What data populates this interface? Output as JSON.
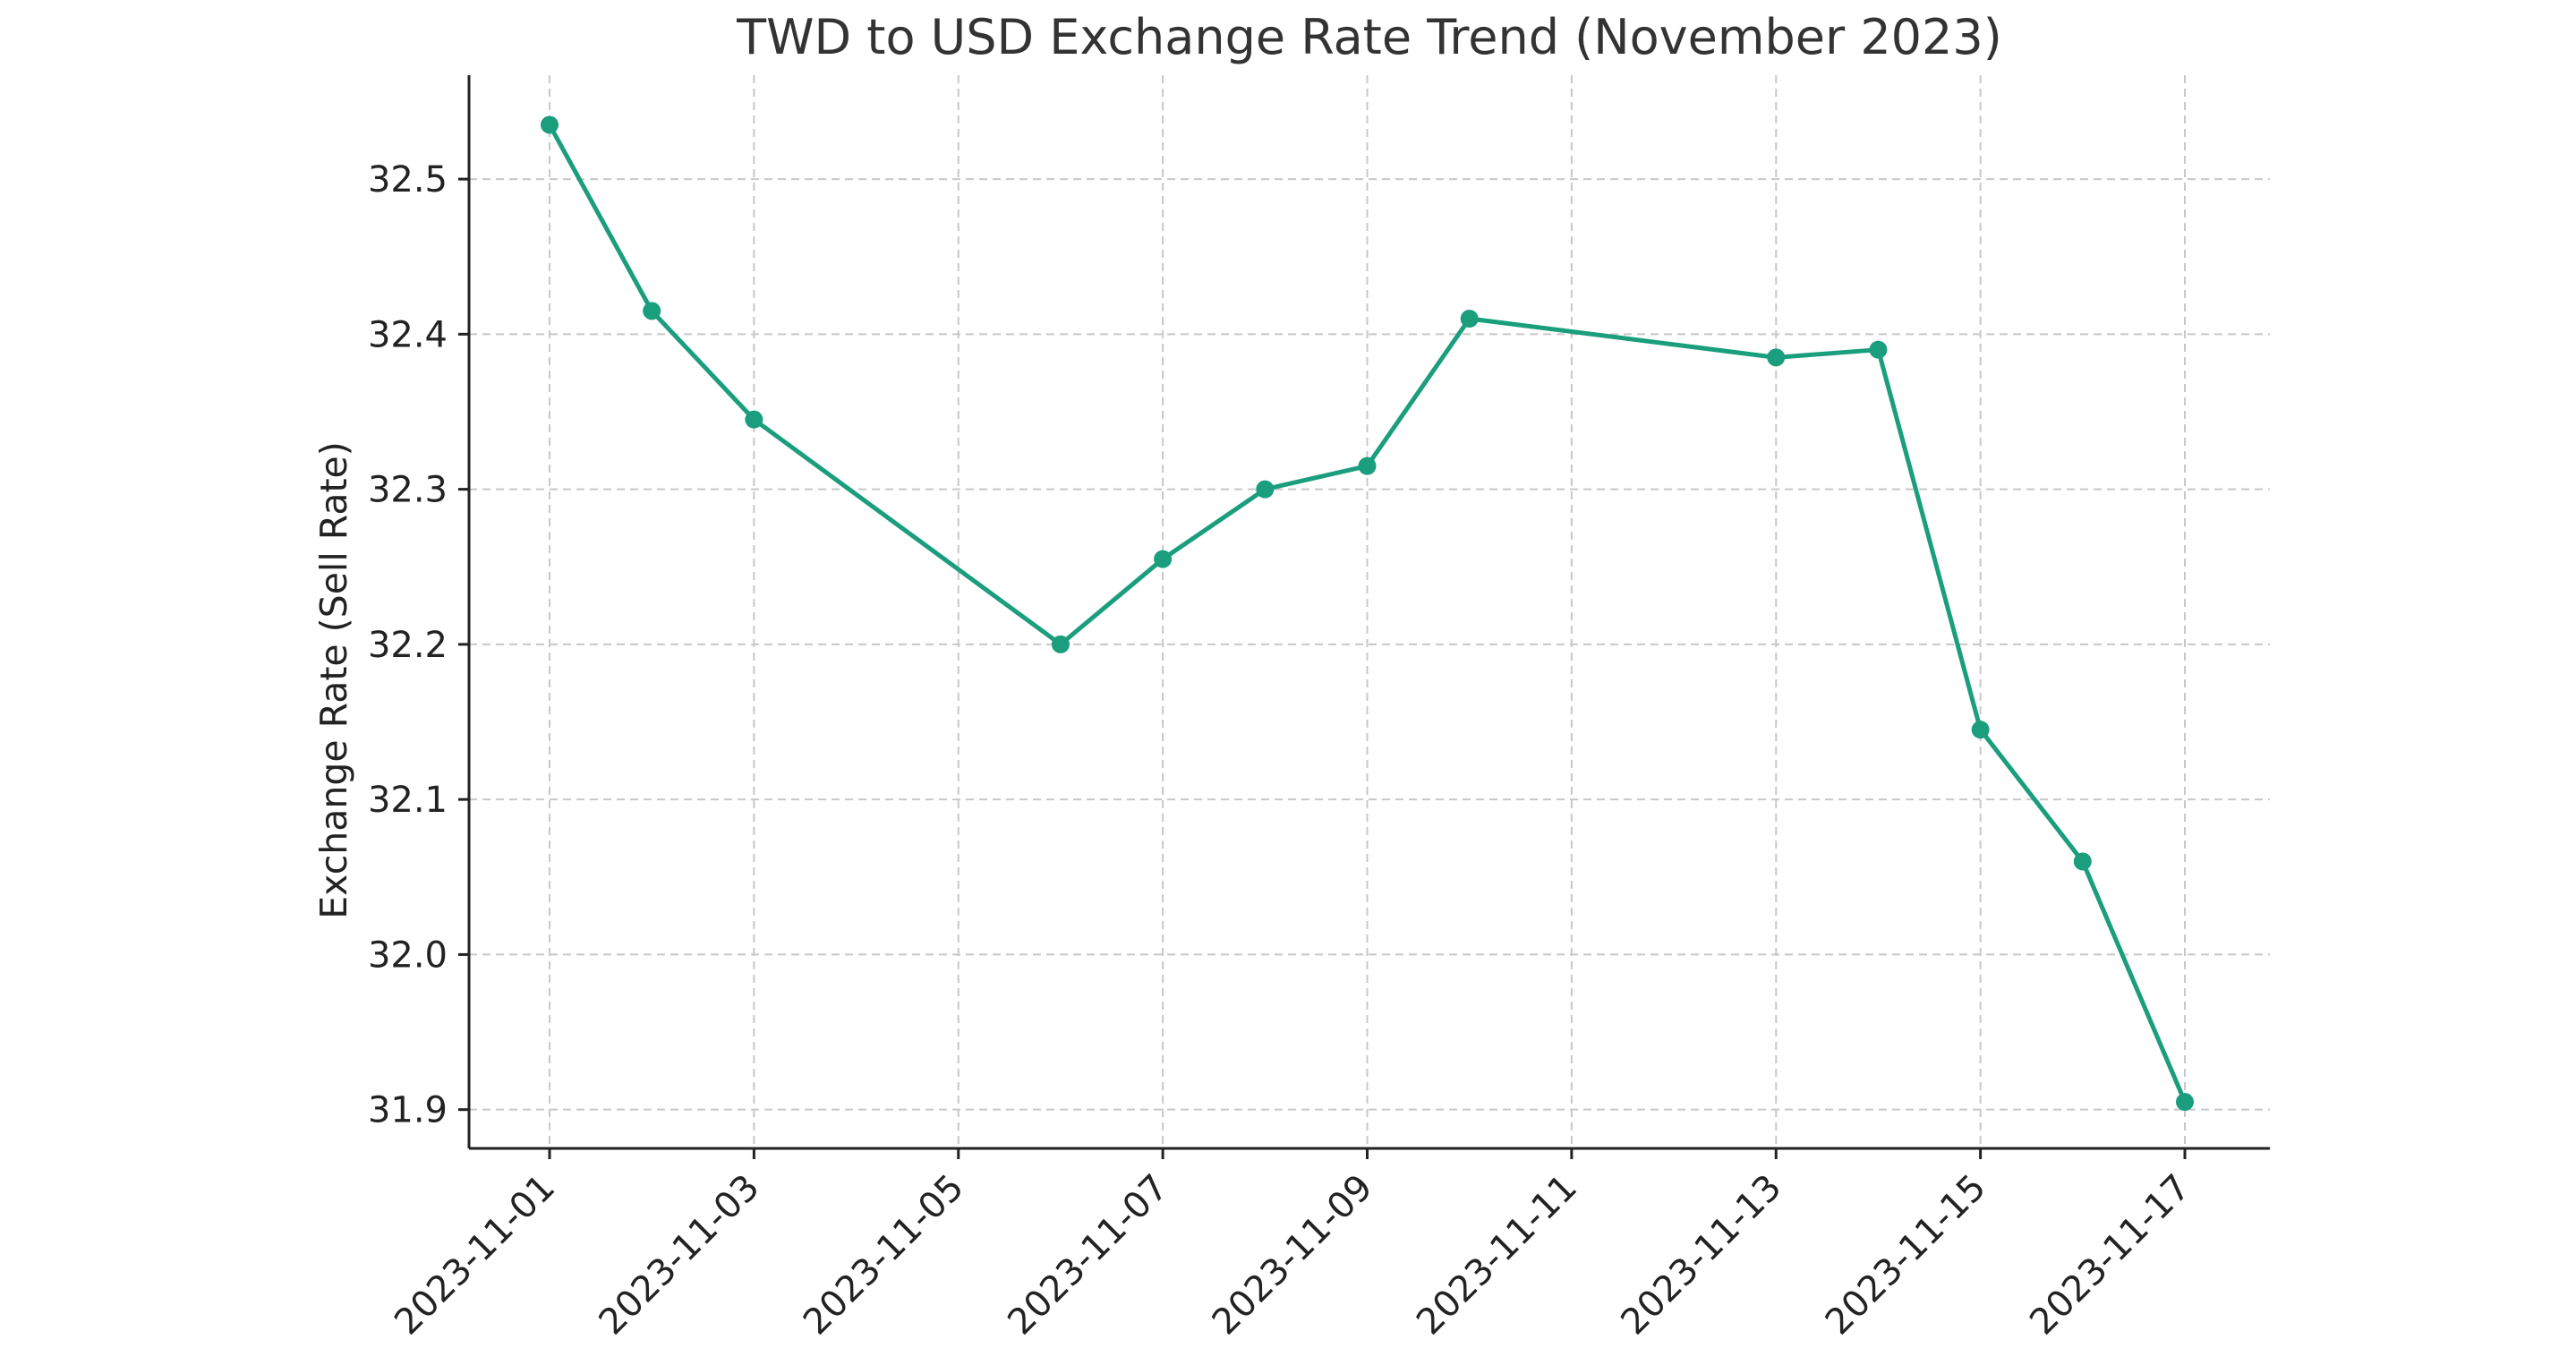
{
  "chart_data": {
    "type": "line",
    "title": "TWD to USD Exchange Rate Trend (November 2023)",
    "xlabel": "",
    "ylabel": "Exchange Rate (Sell Rate)",
    "x_tick_labels": [
      "2023-11-01",
      "2023-11-03",
      "2023-11-05",
      "2023-11-07",
      "2023-11-09",
      "2023-11-11",
      "2023-11-13",
      "2023-11-15",
      "2023-11-17"
    ],
    "y_ticks": [
      31.9,
      32.0,
      32.1,
      32.2,
      32.3,
      32.4,
      32.5
    ],
    "y_tick_labels": [
      "31.9",
      "32.0",
      "32.1",
      "32.2",
      "32.3",
      "32.4",
      "32.5"
    ],
    "xlim": [
      "2023-10-31",
      "2023-11-17"
    ],
    "ylim": [
      31.875,
      32.567
    ],
    "grid": true,
    "color": "#1a9e7e",
    "series": [
      {
        "x": [
          "2023-11-01",
          "2023-11-02",
          "2023-11-03",
          "2023-11-06",
          "2023-11-07",
          "2023-11-08",
          "2023-11-09",
          "2023-11-10",
          "2023-11-13",
          "2023-11-14",
          "2023-11-15",
          "2023-11-16",
          "2023-11-17"
        ],
        "values": [
          32.535,
          32.415,
          32.345,
          32.2,
          32.255,
          32.3,
          32.315,
          32.41,
          32.385,
          32.39,
          32.145,
          32.06,
          31.905
        ]
      }
    ]
  }
}
